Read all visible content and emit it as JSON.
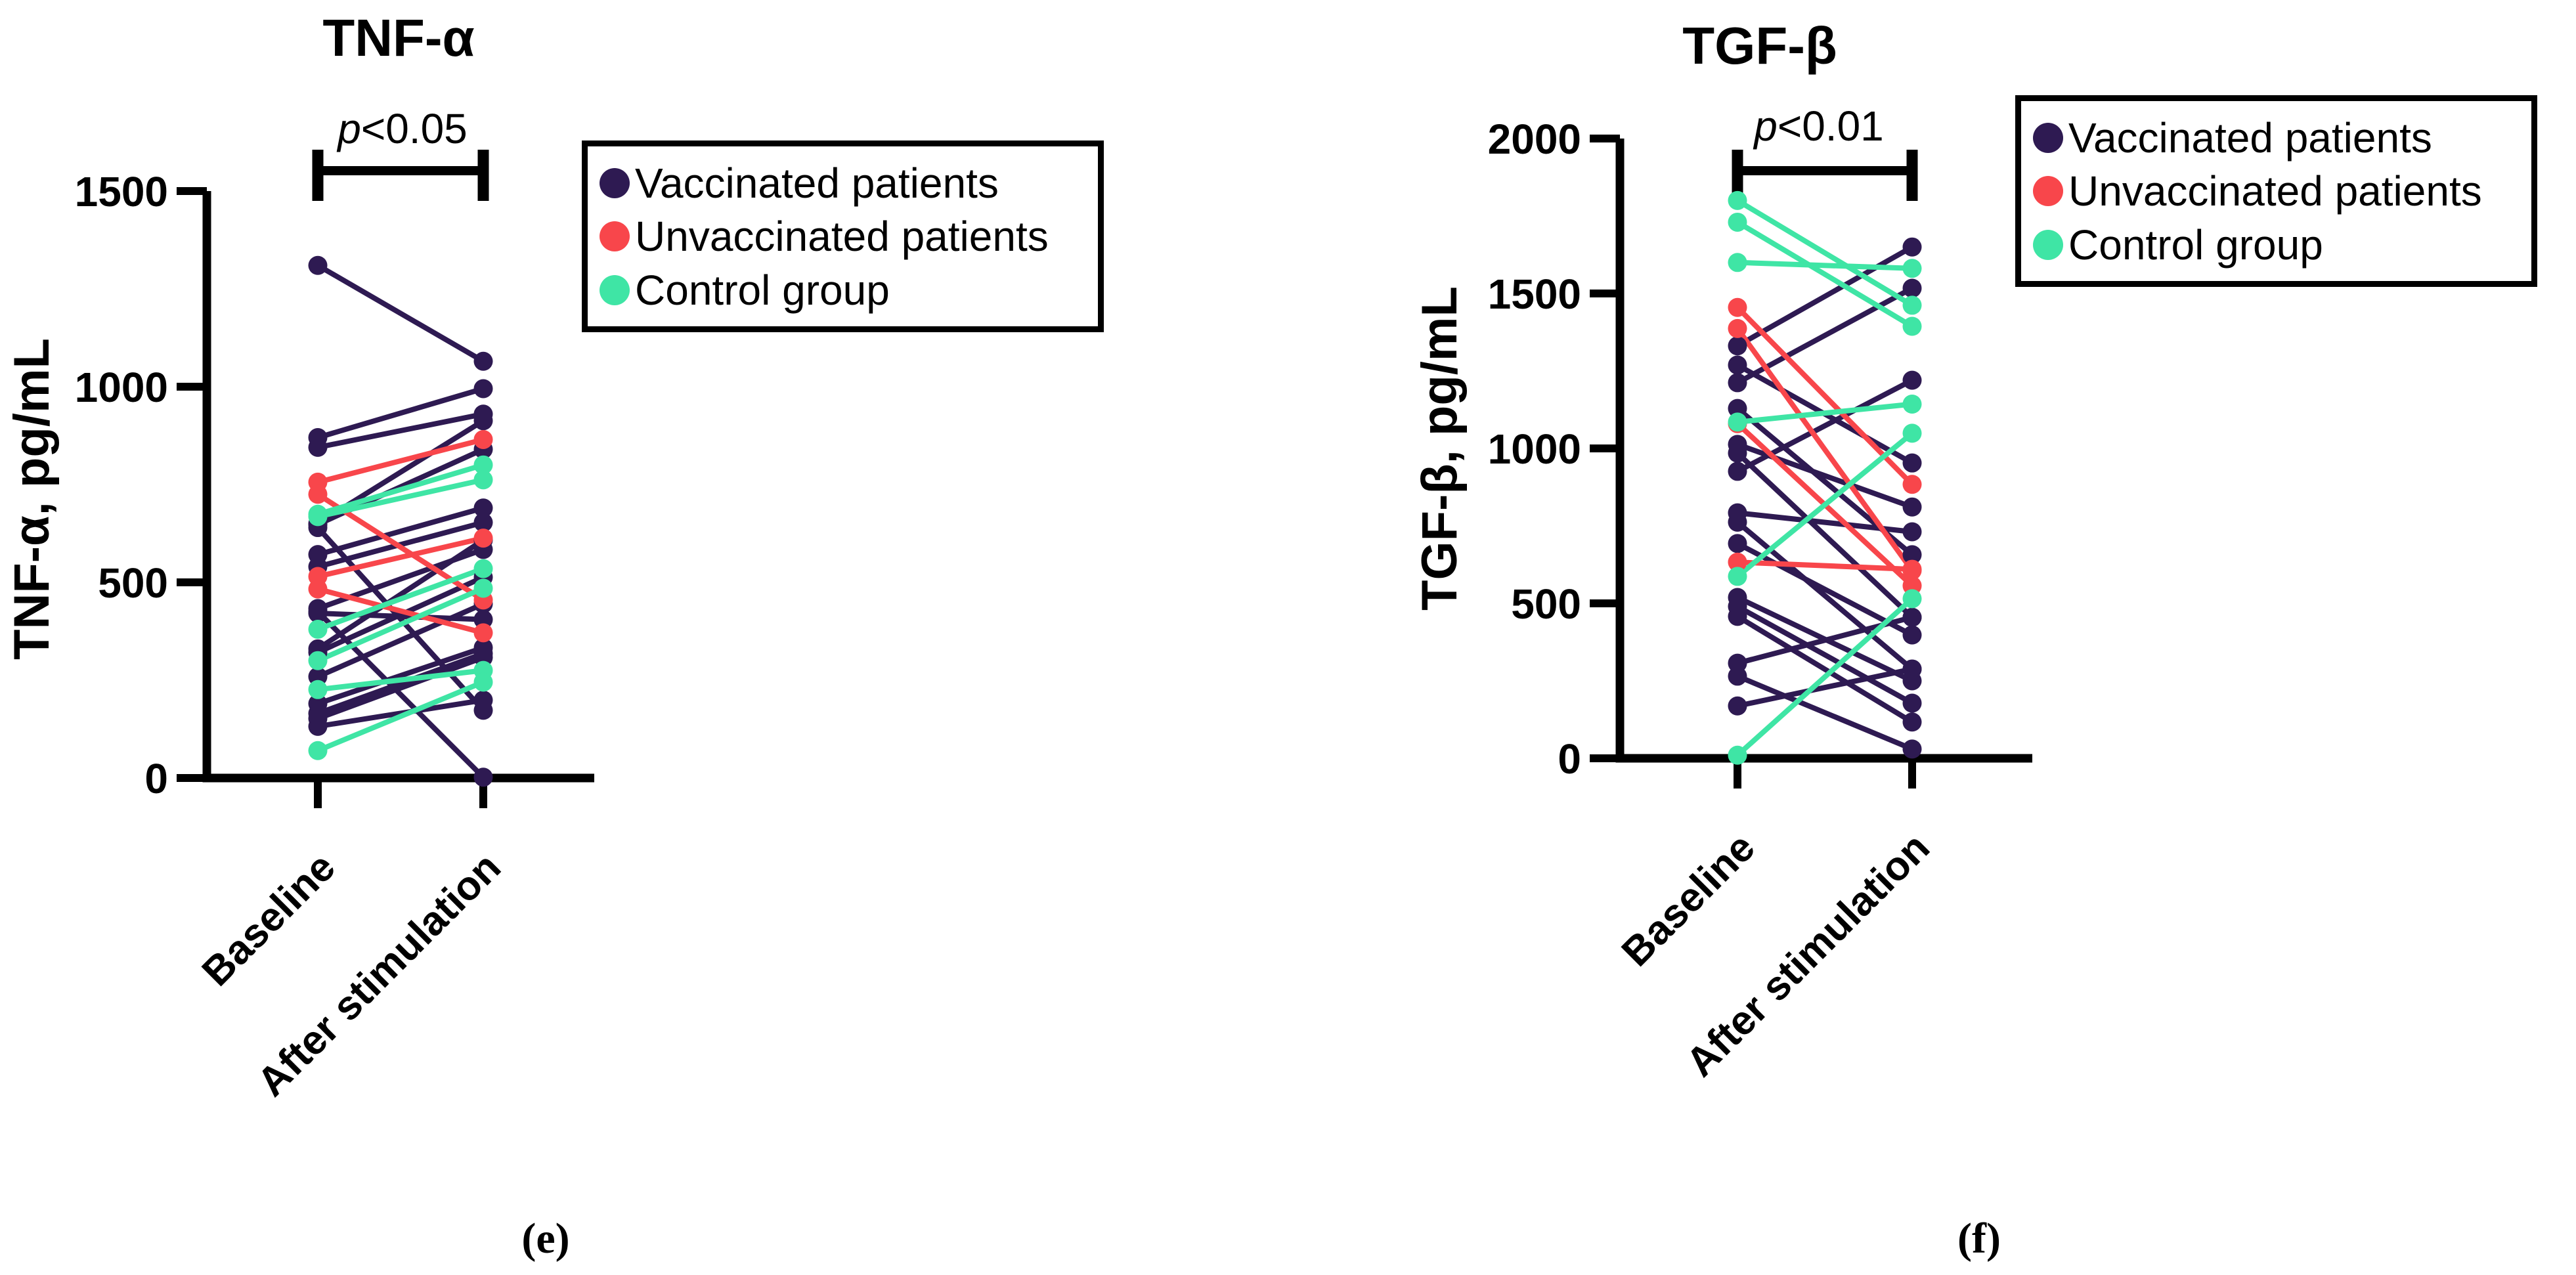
{
  "figure": {
    "background": "#ffffff"
  },
  "legend": {
    "entries": [
      {
        "label": "Vaccinated patients",
        "color": "#2e1a52"
      },
      {
        "label": "Unvaccinated patients",
        "color": "#f8464b"
      },
      {
        "label": "Control group",
        "color": "#3fe5a5"
      }
    ]
  },
  "chart_data": [
    {
      "id": "tnf",
      "type": "line",
      "subtype": "paired-before-after-scatter",
      "title": "TNF-α",
      "ylabel": "TNF-α, pg/mL",
      "xlabel": "",
      "categories": [
        "Baseline",
        "After stimulation"
      ],
      "ylim": [
        0,
        1500
      ],
      "yticks": [
        0,
        500,
        1000,
        1500
      ],
      "grid": false,
      "legend_position": "right-top",
      "significance": {
        "p_italic": "p",
        "rest": "<0.05"
      },
      "caption": "(e)",
      "series": [
        {
          "name": "Vaccinated patients",
          "color": "#2e1a52",
          "pairs": [
            [
              1310,
              1065
            ],
            [
              870,
              995
            ],
            [
              845,
              930
            ],
            [
              650,
              913
            ],
            [
              648,
              840
            ],
            [
              571,
              690
            ],
            [
              540,
              653
            ],
            [
              433,
              584
            ],
            [
              421,
              405
            ],
            [
              330,
              608
            ],
            [
              321,
              513
            ],
            [
              259,
              445
            ],
            [
              190,
              333
            ],
            [
              165,
              318
            ],
            [
              152,
              308
            ],
            [
              132,
              199
            ],
            [
              425,
              2
            ],
            [
              640,
              173
            ]
          ]
        },
        {
          "name": "Unvaccinated patients",
          "color": "#f8464b",
          "pairs": [
            [
              756,
              865
            ],
            [
              725,
              455
            ],
            [
              515,
              613
            ],
            [
              483,
              371
            ]
          ]
        },
        {
          "name": "Control group",
          "color": "#3fe5a5",
          "pairs": [
            [
              674,
              800
            ],
            [
              668,
              762
            ],
            [
              380,
              535
            ],
            [
              300,
              485
            ],
            [
              226,
              275
            ],
            [
              70,
              245
            ]
          ]
        }
      ]
    },
    {
      "id": "tgf",
      "type": "line",
      "subtype": "paired-before-after-scatter",
      "title": "TGF-β",
      "ylabel": "TGF-β, pg/mL",
      "xlabel": "",
      "categories": [
        "Baseline",
        "After stimulation"
      ],
      "ylim": [
        0,
        2000
      ],
      "yticks": [
        0,
        500,
        1000,
        1500,
        2000
      ],
      "grid": false,
      "legend_position": "right-top",
      "significance": {
        "p_italic": "p",
        "rest": "<0.01"
      },
      "caption": "(f)",
      "series": [
        {
          "name": "Vaccinated patients",
          "color": "#2e1a52",
          "pairs": [
            [
              1331,
              1650
            ],
            [
              1269,
              953
            ],
            [
              1212,
              1517
            ],
            [
              1129,
              657
            ],
            [
              1013,
              811
            ],
            [
              985,
              455
            ],
            [
              926,
              1220
            ],
            [
              792,
              731
            ],
            [
              762,
              288
            ],
            [
              693,
              398
            ],
            [
              519,
              250
            ],
            [
              490,
              178
            ],
            [
              458,
              117
            ],
            [
              307,
              455
            ],
            [
              265,
              30
            ],
            [
              169,
              288
            ]
          ]
        },
        {
          "name": "Unvaccinated patients",
          "color": "#f8464b",
          "pairs": [
            [
              1455,
              884
            ],
            [
              1387,
              606
            ],
            [
              1080,
              557
            ],
            [
              633,
              610
            ]
          ]
        },
        {
          "name": "Control group",
          "color": "#3fe5a5",
          "pairs": [
            [
              1800,
              1462
            ],
            [
              1730,
              1394
            ],
            [
              1600,
              1581
            ],
            [
              1085,
              1143
            ],
            [
              587,
              1049
            ],
            [
              10,
              515
            ]
          ]
        }
      ]
    }
  ]
}
